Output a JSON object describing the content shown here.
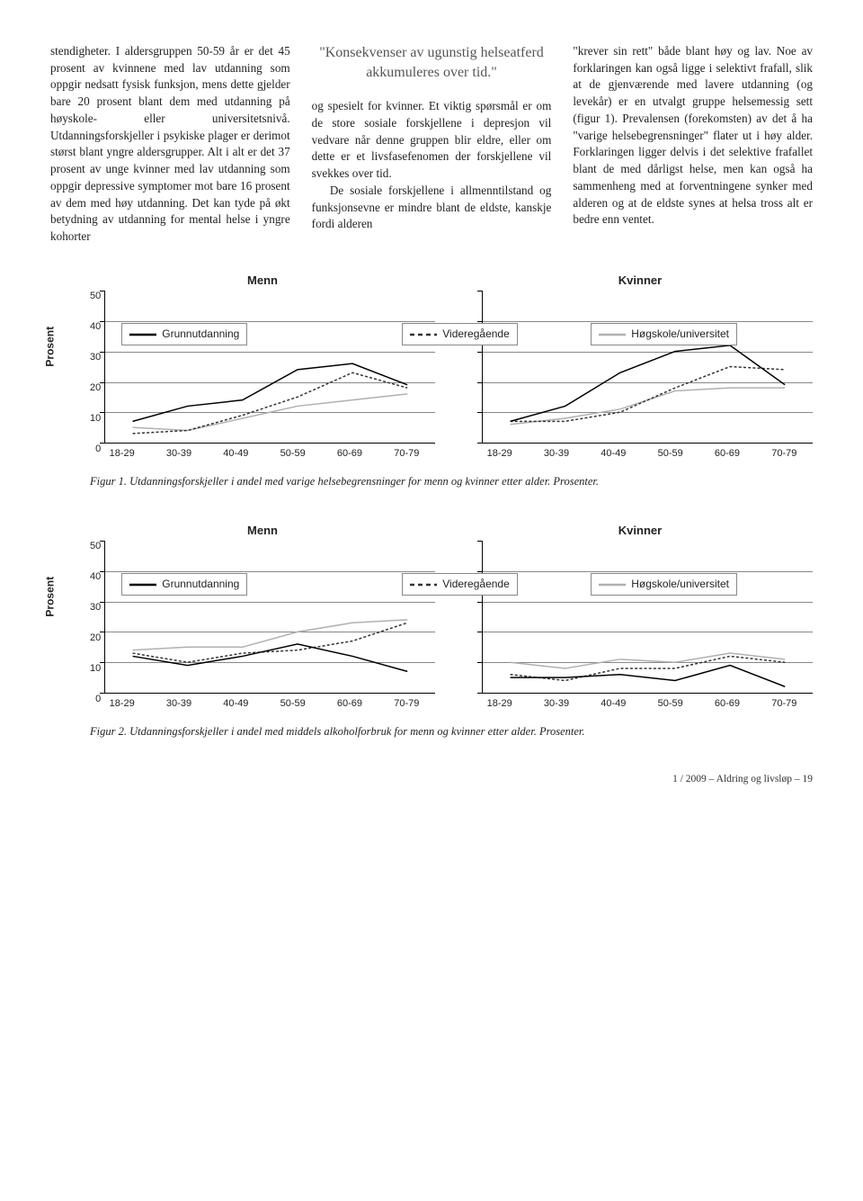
{
  "text": {
    "col1": "stendigheter. I aldersgruppen 50-59 år er det 45 prosent av kvinnene med lav utdanning som oppgir nedsatt fysisk funksjon, mens dette gjelder bare 20 prosent blant dem med utdanning på høyskole- eller universitetsnivå. Utdanningsforskjeller i psykiske plager er derimot størst blant yngre aldersgrupper. Alt i alt er det 37 prosent av unge kvinner med lav utdanning som oppgir depressive symptomer mot bare 16 prosent av dem med høy utdanning. Det kan tyde på økt betydning av utdanning for mental helse i yngre kohorter",
    "callout": "\"Konsekvenser av ugunstig helseatferd akkumuleres over tid.\"",
    "col2": "og spesielt for kvinner. Et viktig spørsmål er om de store sosiale forskjellene i depresjon vil vedvare når denne gruppen blir eldre, eller om dette er et livsfasefenomen der forskjellene vil svekkes over tid.",
    "col2b": "De sosiale forskjellene i allmenntilstand og funksjonsevne er mindre blant de eldste, kanskje fordi alderen",
    "col3": "\"krever sin rett\" både blant høy og lav. Noe av forklaringen kan også ligge i selektivt frafall, slik at de gjenværende med lavere utdanning (og levekår) er en utvalgt gruppe helsemessig sett (figur 1). Prevalen­sen (forekomsten) av det å ha \"varige helsebegrensninger\" flater ut i høy alder. Forklaringen ligger delvis i det selektive frafallet blant de med dårligst helse, men kan også ha sammenheng med at forventningene synker med alderen og at de eldste synes at helsa tross alt er bedre enn ventet."
  },
  "legend": {
    "series1": "Grunnutdanning",
    "series2": "Videregående",
    "series3": "Høgskole/universitet"
  },
  "axis": {
    "ylabel": "Prosent",
    "ylim": [
      0,
      50
    ],
    "ytick_step": 10,
    "xcats": [
      "18-29",
      "30-39",
      "40-49",
      "50-59",
      "60-69",
      "70-79"
    ]
  },
  "panels": {
    "menn": "Menn",
    "kvinner": "Kvinner"
  },
  "colors": {
    "s1": "#000000",
    "s2": "#333333",
    "s3": "#b0b0b0",
    "grid": "#888888",
    "bg": "#ffffff"
  },
  "fig1": {
    "menn": {
      "s1": [
        7,
        12,
        14,
        24,
        26,
        19
      ],
      "s2": [
        3,
        4,
        9,
        15,
        23,
        18
      ],
      "s3": [
        5,
        4,
        8,
        12,
        14,
        16
      ]
    },
    "kvinner": {
      "s1": [
        7,
        12,
        23,
        30,
        32,
        19
      ],
      "s2": [
        7,
        7,
        10,
        18,
        25,
        24
      ],
      "s3": [
        6,
        8,
        11,
        17,
        18,
        18
      ]
    },
    "caption": "Figur 1. Utdanningsforskjeller i andel med varige helsebegrensninger for menn og kvinner etter alder. Prosenter."
  },
  "fig2": {
    "menn": {
      "s1": [
        12,
        9,
        12,
        16,
        12,
        7
      ],
      "s2": [
        13,
        10,
        13,
        14,
        17,
        23
      ],
      "s3": [
        14,
        15,
        15,
        20,
        23,
        24
      ]
    },
    "kvinner": {
      "s1": [
        5,
        5,
        6,
        4,
        9,
        2
      ],
      "s2": [
        6,
        4,
        8,
        8,
        12,
        10
      ],
      "s3": [
        10,
        8,
        11,
        10,
        13,
        11
      ]
    },
    "caption": "Figur 2. Utdanningsforskjeller i andel med middels alkoholforbruk for menn og kvinner etter alder. Prosenter."
  },
  "footer": "1 / 2009 – Aldring og livsløp – 19"
}
